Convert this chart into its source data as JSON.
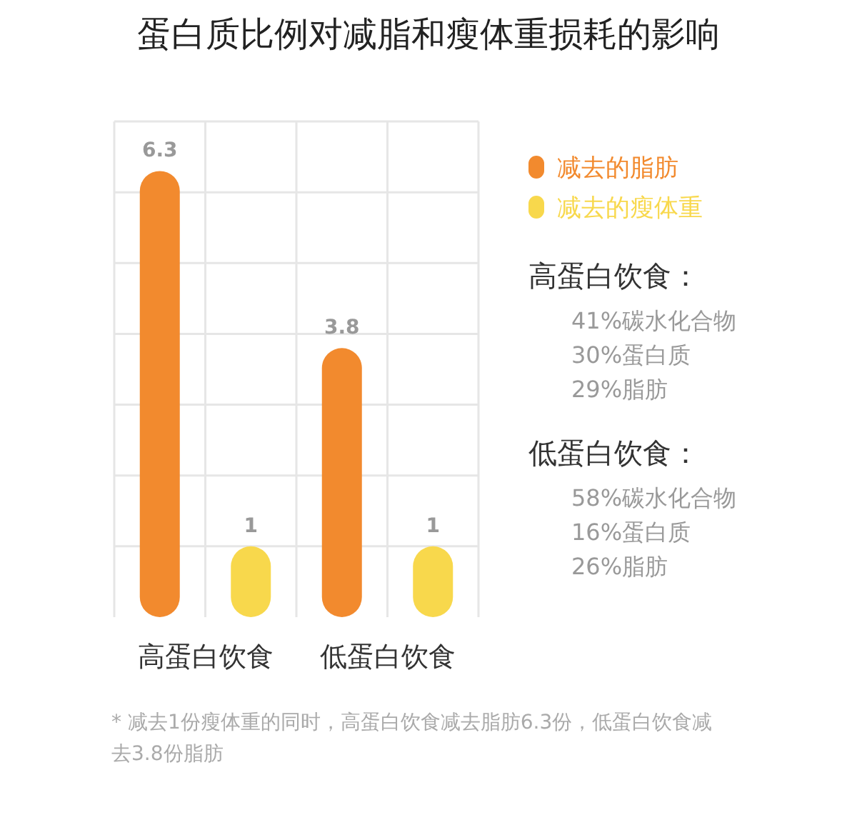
{
  "chart_data": {
    "type": "bar",
    "title": "蛋白质比例对减脂和瘦体重损耗的影响",
    "categories": [
      "高蛋白饮食",
      "低蛋白饮食"
    ],
    "series": [
      {
        "name": "减去的脂肪",
        "color": "#f28a2e",
        "values": [
          6.3,
          3.8
        ]
      },
      {
        "name": "减去的瘦体重",
        "color": "#f8d84c",
        "values": [
          1,
          1
        ]
      }
    ],
    "ylim": [
      0,
      7
    ],
    "yticks": [
      {
        "value": 1,
        "label": null
      },
      {
        "value": 2,
        "label": null
      },
      {
        "value": 3,
        "label": null
      },
      {
        "value": 4,
        "label": null
      },
      {
        "value": 5,
        "label": null
      },
      {
        "value": 6,
        "label": null
      },
      {
        "value": 7,
        "label": null
      }
    ],
    "grid": true,
    "data_labels": true,
    "legend": "right",
    "annotations": [
      "高蛋白饮食：",
      "41%碳水化合物",
      "30%蛋白质",
      "29%脂肪",
      "低蛋白饮食：",
      "58%碳水化合物",
      "16%蛋白质",
      "26%脂肪",
      "* 减去1份瘦体重的同时，高蛋白饮食减去脂肪6.3份，低蛋白饮食减去3.8份脂肪"
    ]
  }
}
